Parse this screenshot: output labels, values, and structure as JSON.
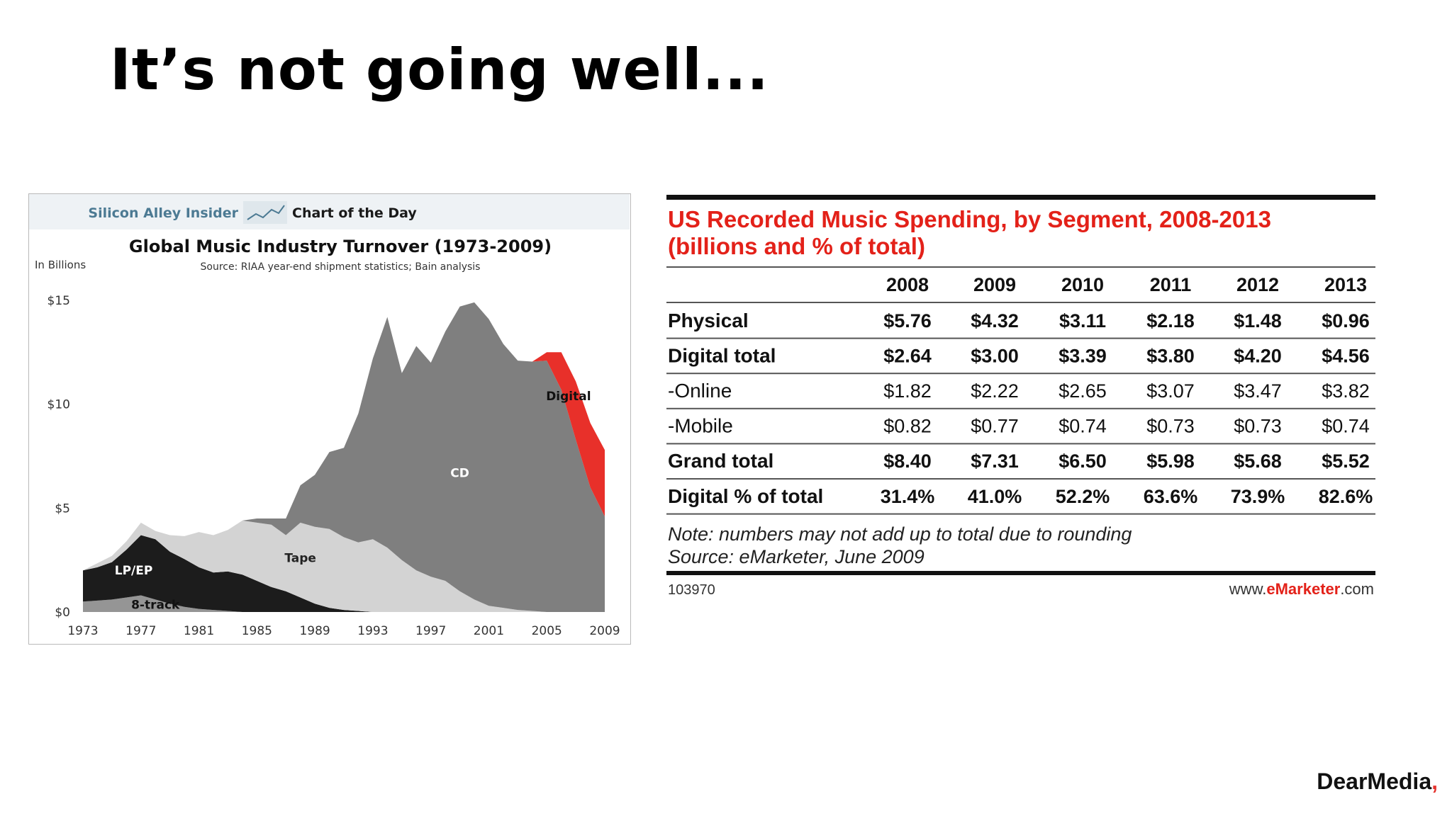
{
  "slide": {
    "title": "It’s not going well...",
    "brand_dark": "DearMedia",
    "brand_red": ",",
    "brand_colors": {
      "dark": "#111111",
      "red": "#e5322d"
    }
  },
  "chart_data": [
    {
      "type": "area",
      "stacked": true,
      "banner_left": "Silicon Alley Insider",
      "banner_right": "Chart of the Day",
      "title": "Global Music Industry Turnover (1973-2009)",
      "subtitle": "Source: RIAA year-end shipment statistics; Bain analysis",
      "ylabel": "In Billions",
      "ylim": [
        0,
        15
      ],
      "yticks": [
        {
          "value": 0,
          "label": "$0"
        },
        {
          "value": 5,
          "label": "$5"
        },
        {
          "value": 10,
          "label": "$10"
        },
        {
          "value": 15,
          "label": "$15"
        }
      ],
      "xlim": [
        1973,
        2009
      ],
      "xticks": [
        1973,
        1977,
        1981,
        1985,
        1989,
        1993,
        1997,
        2001,
        2005,
        2009
      ],
      "x": [
        1973,
        1974,
        1975,
        1976,
        1977,
        1978,
        1979,
        1980,
        1981,
        1982,
        1983,
        1984,
        1985,
        1986,
        1987,
        1988,
        1989,
        1990,
        1991,
        1992,
        1993,
        1994,
        1995,
        1996,
        1997,
        1998,
        1999,
        2000,
        2001,
        2002,
        2003,
        2004,
        2005,
        2006,
        2007,
        2008,
        2009
      ],
      "series": [
        {
          "name": "8-track",
          "label": "8-track",
          "color": "#959595",
          "values": [
            0.5,
            0.55,
            0.6,
            0.7,
            0.8,
            0.6,
            0.4,
            0.25,
            0.15,
            0.1,
            0.05,
            0,
            0,
            0,
            0,
            0,
            0,
            0,
            0,
            0,
            0,
            0,
            0,
            0,
            0,
            0,
            0,
            0,
            0,
            0,
            0,
            0,
            0,
            0,
            0,
            0,
            0
          ]
        },
        {
          "name": "LP/EP",
          "label": "LP/EP",
          "color": "#1c1c1c",
          "values": [
            1.5,
            1.6,
            1.8,
            2.3,
            2.9,
            2.9,
            2.5,
            2.3,
            2.0,
            1.8,
            1.9,
            1.8,
            1.5,
            1.2,
            1.0,
            0.7,
            0.4,
            0.2,
            0.1,
            0.05,
            0,
            0,
            0,
            0,
            0,
            0,
            0,
            0,
            0,
            0,
            0,
            0,
            0,
            0,
            0,
            0,
            0
          ]
        },
        {
          "name": "Tape",
          "label": "Tape",
          "color": "#d3d3d3",
          "values": [
            0,
            0.2,
            0.3,
            0.4,
            0.6,
            0.4,
            0.8,
            1.1,
            1.7,
            1.8,
            2.0,
            2.6,
            2.8,
            3.0,
            2.7,
            3.6,
            3.7,
            3.8,
            3.5,
            3.3,
            3.5,
            3.1,
            2.5,
            2.0,
            1.7,
            1.5,
            1.0,
            0.6,
            0.3,
            0.2,
            0.1,
            0.05,
            0,
            0,
            0,
            0,
            0
          ]
        },
        {
          "name": "CD",
          "label": "CD",
          "color": "#7f7f7f",
          "values": [
            0,
            0,
            0,
            0,
            0,
            0,
            0,
            0,
            0,
            0,
            0,
            0,
            0.2,
            0.3,
            0.8,
            1.8,
            2.5,
            3.7,
            4.3,
            6.2,
            8.7,
            11.1,
            9.0,
            10.8,
            10.3,
            12.0,
            13.7,
            14.3,
            13.8,
            12.7,
            12.0,
            12.0,
            12.1,
            10.7,
            8.3,
            6.0,
            4.6
          ]
        },
        {
          "name": "Digital",
          "label": "Digital",
          "color": "#e8302a",
          "values": [
            0,
            0,
            0,
            0,
            0,
            0,
            0,
            0,
            0,
            0,
            0,
            0,
            0,
            0,
            0,
            0,
            0,
            0,
            0,
            0,
            0,
            0,
            0,
            0,
            0,
            0,
            0,
            0,
            0,
            0,
            0,
            0,
            0.4,
            1.8,
            2.8,
            3.1,
            3.2
          ]
        }
      ]
    },
    {
      "type": "table",
      "title_line1": "US Recorded Music Spending, by Segment, 2008-2013",
      "title_line2": "(billions and % of total)",
      "columns": [
        "2008",
        "2009",
        "2010",
        "2011",
        "2012",
        "2013"
      ],
      "rows": [
        {
          "label": "Physical",
          "bold": true,
          "values": [
            "$5.76",
            "$4.32",
            "$3.11",
            "$2.18",
            "$1.48",
            "$0.96"
          ]
        },
        {
          "label": "Digital total",
          "bold": true,
          "values": [
            "$2.64",
            "$3.00",
            "$3.39",
            "$3.80",
            "$4.20",
            "$4.56"
          ]
        },
        {
          "label": "-Online",
          "bold": false,
          "values": [
            "$1.82",
            "$2.22",
            "$2.65",
            "$3.07",
            "$3.47",
            "$3.82"
          ]
        },
        {
          "label": "-Mobile",
          "bold": false,
          "values": [
            "$0.82",
            "$0.77",
            "$0.74",
            "$0.73",
            "$0.73",
            "$0.74"
          ]
        },
        {
          "label": "Grand total",
          "bold": true,
          "values": [
            "$8.40",
            "$7.31",
            "$6.50",
            "$5.98",
            "$5.68",
            "$5.52"
          ]
        },
        {
          "label": "Digital % of total",
          "bold": true,
          "values": [
            "31.4%",
            "41.0%",
            "52.2%",
            "63.6%",
            "73.9%",
            "82.6%"
          ]
        }
      ],
      "note": "Note: numbers may not add up to total due to rounding",
      "source": "Source: eMarketer, June 2009",
      "id": "103970",
      "site_prefix": "www.",
      "site_brand": "eMarketer",
      "site_suffix": ".com",
      "accent_color": "#e32119"
    }
  ]
}
